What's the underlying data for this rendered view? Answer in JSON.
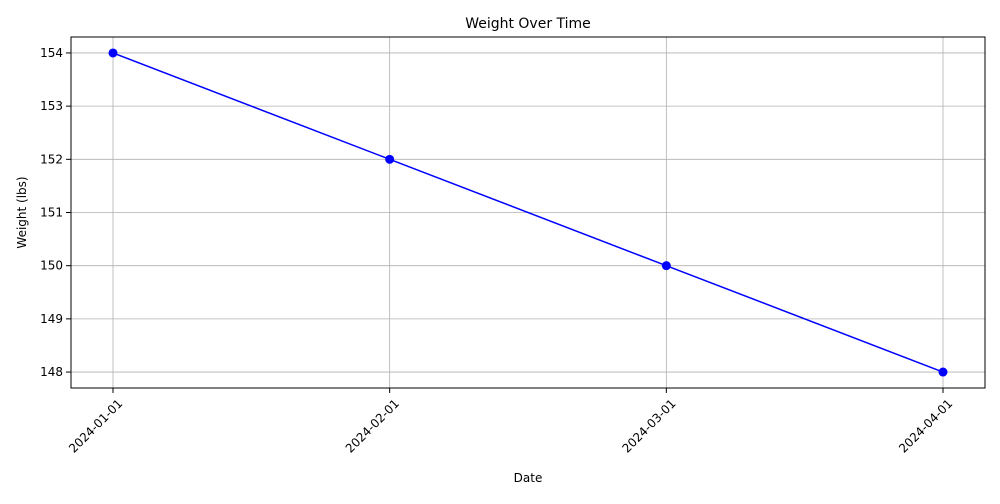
{
  "chart_data": {
    "type": "line",
    "title": "Weight Over Time",
    "xlabel": "Date",
    "ylabel": "Weight (lbs)",
    "x": [
      "2024-01-01",
      "2024-02-01",
      "2024-03-01",
      "2024-04-01"
    ],
    "series": [
      {
        "values": [
          154,
          152,
          150,
          148
        ],
        "color": "#0000ff",
        "marker": "circle"
      }
    ],
    "ylim": [
      147.7,
      154.3
    ],
    "y_ticks": [
      148,
      149,
      150,
      151,
      152,
      153,
      154
    ],
    "x_tick_rotation_deg": 45,
    "grid": true,
    "legend": false
  }
}
